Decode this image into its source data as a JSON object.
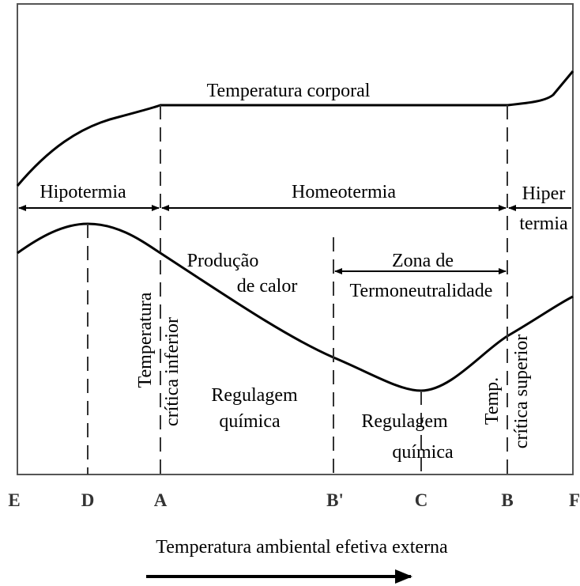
{
  "curves": {
    "body_temperature": "Temperatura corporal",
    "heat_production": [
      "Produção",
      "de calor"
    ]
  },
  "regions": {
    "hypothermia": "Hipotermia",
    "homeothermy": "Homeotermia",
    "hyperthermia": [
      "Hiper",
      "termia"
    ]
  },
  "zone": [
    "Zona de",
    "Termoneutralidade"
  ],
  "lower_critical": [
    "Temperatura",
    "crítica inferior"
  ],
  "upper_critical": [
    "Temp.",
    "crítica superior"
  ],
  "regulation_left": [
    "Regulagem",
    "química"
  ],
  "regulation_right": [
    "Regulagem",
    "química"
  ],
  "axis_points": [
    "E",
    "D",
    "A",
    "B'",
    "C",
    "B",
    "F"
  ],
  "axis_title": "Temperatura ambiental efetiva externa"
}
